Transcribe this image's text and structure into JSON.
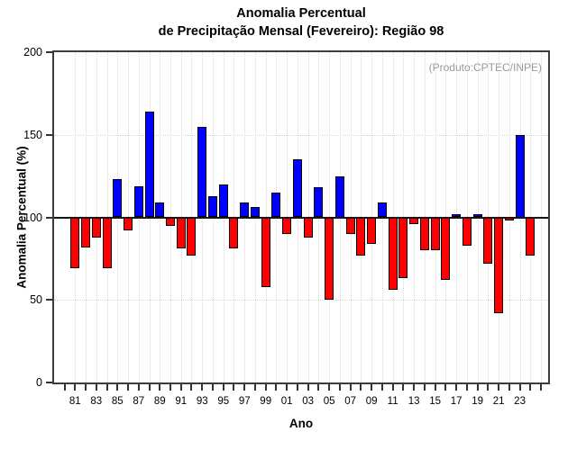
{
  "title": {
    "line1": "Anomalia Percentual",
    "line2": "de Precipitação Mensal (Fevereiro): Região 98"
  },
  "chart_data": {
    "type": "bar",
    "title": "Anomalia Percentual de Precipitação Mensal (Fevereiro): Região 98",
    "annotation": "(Produto:CPTEC/INPE)",
    "xlabel": "Ano",
    "ylabel": "Anomalia Percentual (%)",
    "ylim": [
      0,
      200
    ],
    "yticks": [
      0,
      50,
      100,
      150,
      200
    ],
    "ytick_labels": [
      "0",
      "50",
      "100",
      "150",
      "200"
    ],
    "baseline": 100,
    "grid": true,
    "legend": false,
    "colors": {
      "above_baseline": "#0000ff",
      "below_baseline": "#ff0000",
      "bar_border": "#000000",
      "annotation": "#999999"
    },
    "years": [
      1981,
      1982,
      1983,
      1984,
      1985,
      1986,
      1987,
      1988,
      1989,
      1990,
      1991,
      1992,
      1993,
      1994,
      1995,
      1996,
      1997,
      1998,
      1999,
      2000,
      2001,
      2002,
      2003,
      2004,
      2005,
      2006,
      2007,
      2008,
      2009,
      2010,
      2011,
      2012,
      2013,
      2014,
      2015,
      2016,
      2017,
      2018,
      2019,
      2020,
      2021,
      2022,
      2023,
      2024
    ],
    "values": [
      69,
      82,
      88,
      69,
      123,
      92,
      119,
      164,
      109,
      95,
      81,
      77,
      155,
      113,
      120,
      81,
      109,
      106,
      58,
      115,
      90,
      135,
      88,
      118,
      50,
      125,
      90,
      77,
      84,
      109,
      56,
      63,
      96,
      80,
      80,
      62,
      102,
      83,
      102,
      72,
      42,
      98,
      150,
      77
    ],
    "xtick_labels": [
      "81",
      "83",
      "85",
      "87",
      "89",
      "91",
      "93",
      "95",
      "97",
      "99",
      "01",
      "03",
      "05",
      "07",
      "09",
      "11",
      "13",
      "15",
      "17",
      "19",
      "21",
      "23"
    ]
  }
}
